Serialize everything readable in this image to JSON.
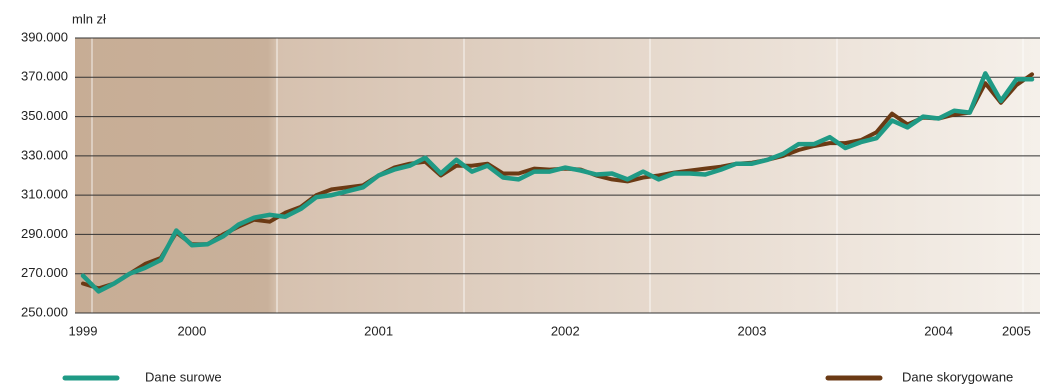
{
  "chart_data": {
    "type": "line",
    "y_axis_label": "mln zł",
    "categories": [
      "1999",
      null,
      null,
      null,
      null,
      null,
      null,
      "2000",
      null,
      null,
      null,
      null,
      null,
      null,
      null,
      null,
      null,
      null,
      null,
      "2001",
      null,
      null,
      null,
      null,
      null,
      null,
      null,
      null,
      null,
      null,
      null,
      "2002",
      null,
      null,
      null,
      null,
      null,
      null,
      null,
      null,
      null,
      null,
      null,
      "2003",
      null,
      null,
      null,
      null,
      null,
      null,
      null,
      null,
      null,
      null,
      null,
      "2004",
      null,
      null,
      null,
      null,
      "2005",
      null
    ],
    "series": [
      {
        "name": "Dane skorygowane",
        "color": "#6b3a14",
        "values": [
          265000,
          262500,
          265000,
          270000,
          275000,
          278000,
          291000,
          285000,
          285000,
          290000,
          294000,
          297500,
          296500,
          301000,
          304000,
          310000,
          313000,
          314000,
          315000,
          320000,
          324000,
          326000,
          327000,
          320000,
          325000,
          325000,
          326000,
          321000,
          321000,
          323500,
          323000,
          323500,
          323000,
          320000,
          318000,
          317000,
          319000,
          320000,
          321500,
          322500,
          323500,
          324500,
          326000,
          326500,
          328000,
          330000,
          333000,
          335000,
          336500,
          336500,
          338000,
          342000,
          351500,
          346000,
          349500,
          349000,
          351000,
          352000,
          367000,
          357000,
          366000,
          371500
        ]
      },
      {
        "name": "Dane surowe",
        "color": "#1f9a85",
        "values": [
          269000,
          261000,
          265000,
          270000,
          273000,
          277000,
          292000,
          284500,
          285000,
          289000,
          295000,
          298500,
          300000,
          299000,
          303000,
          309000,
          310000,
          312000,
          314000,
          320000,
          323000,
          325000,
          329000,
          321000,
          328000,
          322000,
          325000,
          319000,
          318000,
          322000,
          322000,
          324000,
          322500,
          320500,
          321000,
          318000,
          322000,
          318000,
          321000,
          321000,
          320500,
          323000,
          326000,
          326000,
          328000,
          331000,
          336000,
          336000,
          339500,
          334000,
          337000,
          339000,
          348000,
          344500,
          350000,
          349000,
          353000,
          352000,
          372000,
          358000,
          369000,
          369000
        ]
      }
    ],
    "ylim": [
      250000,
      390000
    ],
    "yticks": [
      {
        "value": 250000,
        "label": "250.000"
      },
      {
        "value": 270000,
        "label": "270.000"
      },
      {
        "value": 290000,
        "label": "290.000"
      },
      {
        "value": 310000,
        "label": "310.000"
      },
      {
        "value": 330000,
        "label": "330.000"
      },
      {
        "value": 350000,
        "label": "350.000"
      },
      {
        "value": 370000,
        "label": "370.000"
      },
      {
        "value": 390000,
        "label": "390.000"
      }
    ],
    "grid": true
  }
}
